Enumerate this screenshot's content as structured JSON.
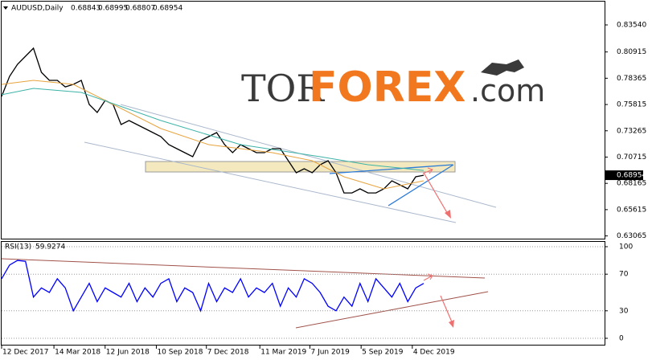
{
  "header": {
    "symbol": "AUDUSD,Daily",
    "ohlc": [
      0.68843,
      0.68995,
      0.68807,
      0.68954
    ]
  },
  "logo": {
    "part1": "TOR",
    "part2": "FOREX",
    "part3": ".com"
  },
  "chart_data": [
    {
      "type": "line",
      "current_price": 0.68954,
      "x": [
        "2017-12-12",
        "2017-12-26",
        "2018-01-09",
        "2018-01-23",
        "2018-02-06",
        "2018-02-20",
        "2018-03-06",
        "2018-03-20",
        "2018-04-03",
        "2018-04-17",
        "2018-05-01",
        "2018-05-15",
        "2018-05-29",
        "2018-06-12",
        "2018-06-26",
        "2018-07-10",
        "2018-07-24",
        "2018-08-07",
        "2018-08-21",
        "2018-09-04",
        "2018-09-18",
        "2018-10-02",
        "2018-10-16",
        "2018-10-30",
        "2018-11-13",
        "2018-11-27",
        "2018-12-11",
        "2018-12-25",
        "2019-01-08",
        "2019-01-22",
        "2019-02-05",
        "2019-02-19",
        "2019-03-05",
        "2019-03-19",
        "2019-04-02",
        "2019-04-16",
        "2019-04-30",
        "2019-05-14",
        "2019-05-28",
        "2019-06-11",
        "2019-06-25",
        "2019-07-09",
        "2019-07-23",
        "2019-08-06",
        "2019-08-20",
        "2019-09-03",
        "2019-09-17",
        "2019-10-01",
        "2019-10-15",
        "2019-10-29",
        "2019-11-12",
        "2019-11-26",
        "2019-12-10",
        "2019-12-24"
      ],
      "series": [
        {
          "color": "#000000",
          "values": [
            0.766,
            0.7855,
            0.7972,
            0.805,
            0.8128,
            0.7894,
            0.7816,
            0.7816,
            0.7753,
            0.7777,
            0.7816,
            0.7582,
            0.7504,
            0.7621,
            0.7582,
            0.7387,
            0.7426,
            0.7387,
            0.7348,
            0.7309,
            0.727,
            0.7192,
            0.7153,
            0.7114,
            0.7075,
            0.7231,
            0.727,
            0.7309,
            0.7192,
            0.7114,
            0.7192,
            0.7153,
            0.7114,
            0.7114,
            0.7153,
            0.7153,
            0.7036,
            0.6919,
            0.6958,
            0.6919,
            0.6997,
            0.7036,
            0.6919,
            0.6724,
            0.6724,
            0.6763,
            0.6724,
            0.6724,
            0.6763,
            0.6841,
            0.6802,
            0.6763,
            0.688,
            0.68954
          ]
        },
        {
          "color": "#e8a33d",
          "x": [
            "2017-12-12",
            "2018-02-06",
            "2018-04-17",
            "2018-06-12",
            "2018-09-18",
            "2018-12-11",
            "2019-04-02",
            "2019-06-11",
            "2019-08-06",
            "2019-10-15",
            "2019-12-24"
          ],
          "values": [
            0.7777,
            0.7816,
            0.7777,
            0.7621,
            0.7348,
            0.7192,
            0.7114,
            0.7036,
            0.688,
            0.6763,
            0.6841
          ]
        },
        {
          "color": "#3cb3a7",
          "x": [
            "2017-12-12",
            "2018-02-06",
            "2018-05-01",
            "2018-09-18",
            "2019-02-05",
            "2019-06-25",
            "2019-09-17",
            "2019-12-24"
          ],
          "values": [
            0.7676,
            0.7738,
            0.7699,
            0.7426,
            0.7192,
            0.7075,
            0.6997,
            0.6942
          ]
        }
      ],
      "xlim": [
        "2017-12-12",
        "2020-11-06"
      ],
      "ylim": [
        0.628,
        0.858
      ],
      "yticks": [
        {
          "value": 0.8354,
          "label": "0.83540"
        },
        0.80915,
        0.78365,
        0.75815,
        0.73265,
        0.70715,
        0.68165,
        0.65615,
        0.63065
      ],
      "grid": false
    },
    {
      "type": "line",
      "title": "RSI(13)",
      "current_value": 59.9274,
      "x": [
        "2017-12-12",
        "2017-12-26",
        "2018-01-09",
        "2018-01-23",
        "2018-02-06",
        "2018-02-20",
        "2018-03-06",
        "2018-03-20",
        "2018-04-03",
        "2018-04-17",
        "2018-05-01",
        "2018-05-15",
        "2018-05-29",
        "2018-06-12",
        "2018-06-26",
        "2018-07-10",
        "2018-07-24",
        "2018-08-07",
        "2018-08-21",
        "2018-09-04",
        "2018-09-18",
        "2018-10-02",
        "2018-10-16",
        "2018-10-30",
        "2018-11-13",
        "2018-11-27",
        "2018-12-11",
        "2018-12-25",
        "2019-01-08",
        "2019-01-22",
        "2019-02-05",
        "2019-02-19",
        "2019-03-05",
        "2019-03-19",
        "2019-04-02",
        "2019-04-16",
        "2019-04-30",
        "2019-05-14",
        "2019-05-28",
        "2019-06-11",
        "2019-06-25",
        "2019-07-09",
        "2019-07-23",
        "2019-08-06",
        "2019-08-20",
        "2019-09-03",
        "2019-09-17",
        "2019-10-01",
        "2019-10-15",
        "2019-10-29",
        "2019-11-12",
        "2019-11-26",
        "2019-12-10",
        "2019-12-24"
      ],
      "series": [
        {
          "color": "#0000ff",
          "values": [
            65,
            80,
            85,
            84,
            45,
            55,
            50,
            65,
            55,
            30,
            45,
            60,
            40,
            55,
            50,
            45,
            60,
            40,
            55,
            45,
            60,
            65,
            40,
            55,
            50,
            30,
            60,
            40,
            55,
            50,
            65,
            45,
            55,
            50,
            60,
            35,
            55,
            45,
            65,
            60,
            50,
            35,
            30,
            45,
            35,
            60,
            40,
            65,
            55,
            45,
            60,
            40,
            55,
            59.9274
          ]
        }
      ],
      "xlim": [
        "2017-12-12",
        "2020-11-06"
      ],
      "xticks": [
        {
          "value": "2017-12-12",
          "label": "12 Dec 2017"
        },
        {
          "value": "2018-03-14",
          "label": "14 Mar 2018"
        },
        {
          "value": "2018-06-12",
          "label": "12 Jun 2018"
        },
        {
          "value": "2018-09-10",
          "label": "10 Sep 2018"
        },
        {
          "value": "2018-12-07",
          "label": "7 Dec 2018"
        },
        {
          "value": "2019-03-11",
          "label": "11 Mar 2019"
        },
        {
          "value": "2019-06-07",
          "label": "7 Jun 2019"
        },
        {
          "value": "2019-09-05",
          "label": "5 Sep 2019"
        },
        {
          "value": "2019-12-04",
          "label": "4 Dec 2019"
        }
      ],
      "ylim": [
        0,
        100
      ],
      "yticks": [
        100,
        70,
        30,
        0
      ],
      "grid": true
    }
  ]
}
